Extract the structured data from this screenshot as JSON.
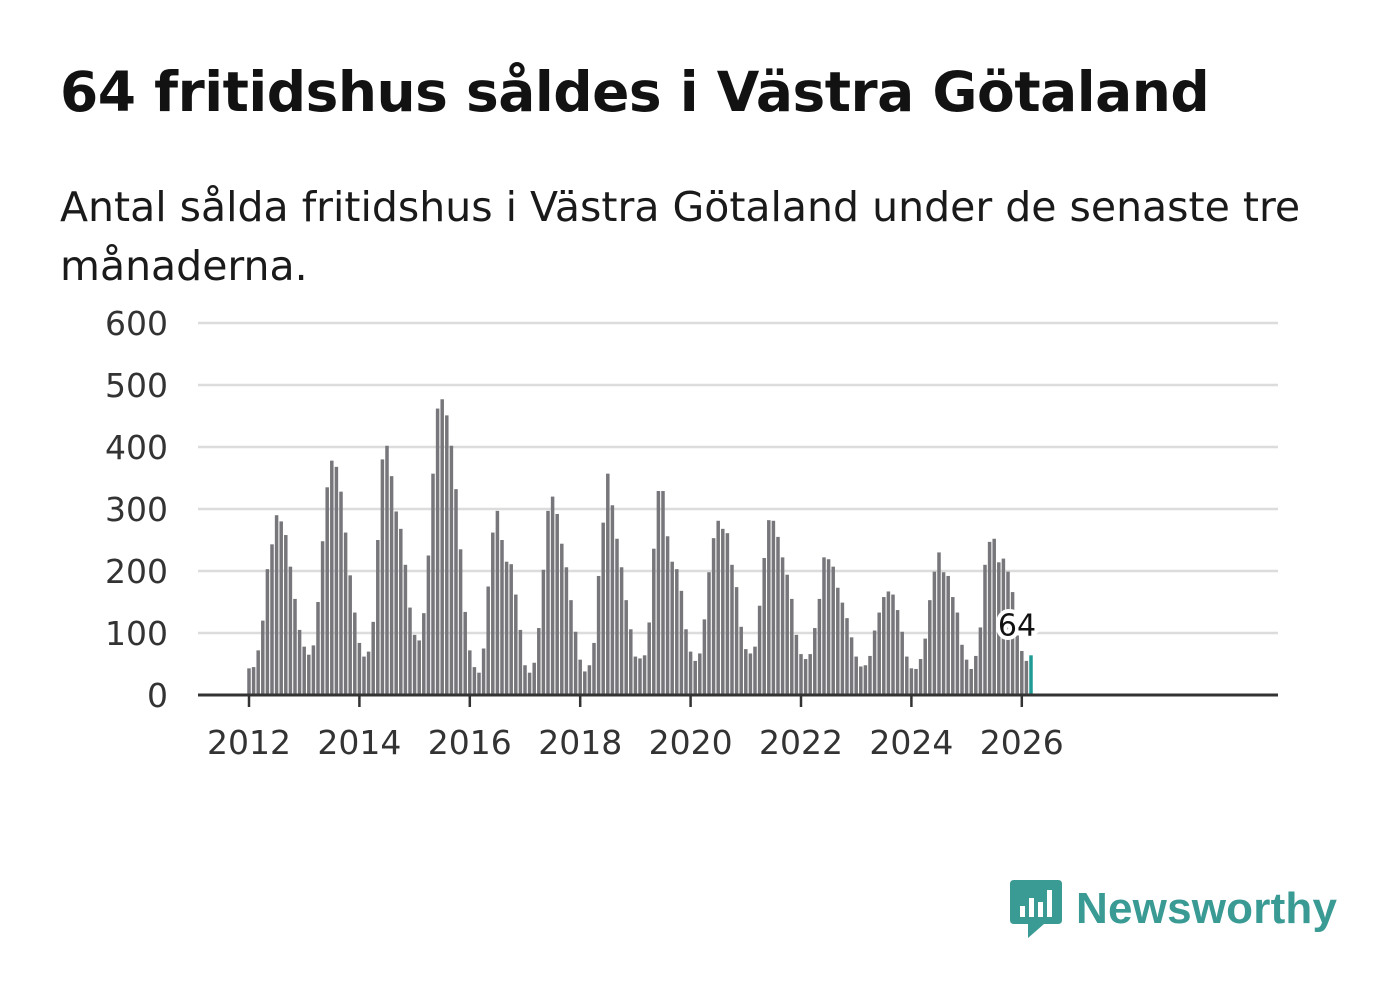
{
  "header": {
    "title": "64 fritidshus såldes i Västra Götaland",
    "subtitle": "Antal sålda fritidshus i Västra Götaland under de senaste tre månaderna."
  },
  "brand": {
    "name": "Newsworthy",
    "icon": "newsworthy-logo-icon",
    "color": "#3a9a94"
  },
  "colors": {
    "bar": "#77777b",
    "highlight": "#1f9a94",
    "grid": "#dcdcdc",
    "axis": "#333333"
  },
  "chart_data": {
    "type": "bar",
    "title": "64 fritidshus såldes i Västra Götaland",
    "subtitle": "Antal sålda fritidshus i Västra Götaland under de senaste tre månaderna.",
    "xlabel": "",
    "ylabel": "",
    "ylim": [
      0,
      600
    ],
    "yticks": [
      0,
      100,
      200,
      300,
      400,
      500,
      600
    ],
    "xticks": [
      {
        "label": "2012",
        "index": 0
      },
      {
        "label": "2014",
        "index": 24
      },
      {
        "label": "2016",
        "index": 48
      },
      {
        "label": "2018",
        "index": 72
      },
      {
        "label": "2020",
        "index": 96
      },
      {
        "label": "2022",
        "index": 120
      },
      {
        "label": "2024",
        "index": 144
      },
      {
        "label": "2026",
        "index": 168
      }
    ],
    "grid": true,
    "start": "2012-01",
    "end": "2026-03",
    "highlight_index": 170,
    "highlight_label": "64",
    "values": [
      43,
      45,
      72,
      120,
      203,
      243,
      290,
      280,
      258,
      207,
      155,
      105,
      78,
      65,
      80,
      150,
      248,
      335,
      378,
      368,
      328,
      262,
      193,
      133,
      84,
      62,
      70,
      118,
      250,
      380,
      402,
      353,
      296,
      268,
      210,
      141,
      97,
      88,
      132,
      225,
      357,
      462,
      477,
      451,
      402,
      332,
      235,
      134,
      72,
      45,
      36,
      75,
      175,
      262,
      297,
      250,
      215,
      211,
      162,
      105,
      48,
      36,
      52,
      108,
      202,
      297,
      320,
      292,
      244,
      206,
      153,
      102,
      57,
      38,
      48,
      84,
      192,
      278,
      357,
      306,
      252,
      206,
      153,
      106,
      62,
      59,
      64,
      117,
      236,
      329,
      329,
      256,
      215,
      203,
      168,
      106,
      70,
      55,
      67,
      122,
      198,
      253,
      281,
      268,
      261,
      210,
      174,
      110,
      74,
      67,
      78,
      144,
      221,
      282,
      281,
      255,
      222,
      194,
      155,
      97,
      66,
      58,
      66,
      108,
      155,
      222,
      219,
      207,
      173,
      149,
      124,
      93,
      62,
      46,
      48,
      63,
      104,
      133,
      158,
      167,
      162,
      137,
      102,
      62,
      43,
      42,
      58,
      91,
      153,
      199,
      230,
      198,
      192,
      158,
      133,
      81,
      57,
      42,
      63,
      109,
      210,
      247,
      252,
      214,
      220,
      199,
      166,
      96,
      71,
      55,
      64
    ]
  }
}
